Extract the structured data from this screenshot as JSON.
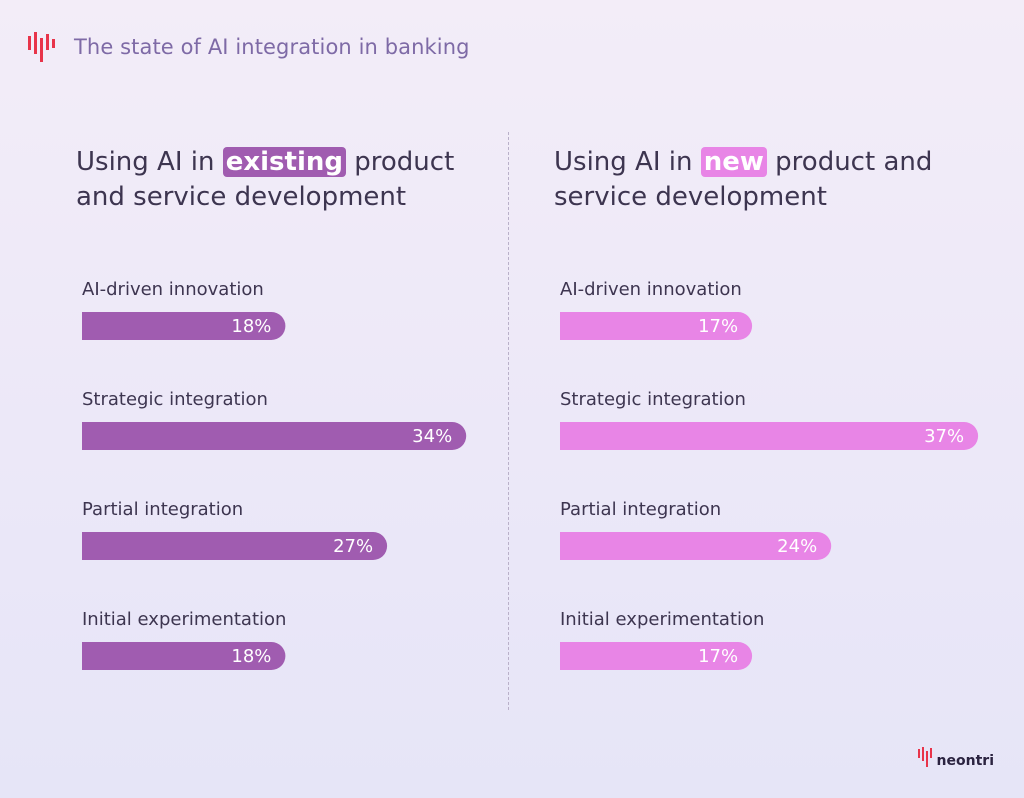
{
  "header": {
    "title": "The state of AI integration in banking"
  },
  "panels": [
    {
      "title_before": "Using AI in",
      "highlight": "existing",
      "title_after": "product and service development"
    },
    {
      "title_before": "Using AI in",
      "highlight": "new",
      "title_after": "product and service development"
    }
  ],
  "brand": {
    "name": "neontri"
  },
  "colors": {
    "existing": "#a05cb0",
    "new": "#e885e6",
    "logo_red": "#e8344a"
  },
  "chart_data": [
    {
      "type": "bar",
      "orientation": "horizontal",
      "categories": [
        "AI-driven innovation",
        "Strategic integration",
        "Partial integration",
        "Initial experimentation"
      ],
      "values": [
        18,
        34,
        27,
        18
      ],
      "value_labels": [
        "18%",
        "34%",
        "27%",
        "18%"
      ],
      "unit": "%",
      "color": "#a05cb0"
    },
    {
      "type": "bar",
      "orientation": "horizontal",
      "categories": [
        "AI-driven innovation",
        "Strategic integration",
        "Partial integration",
        "Initial experimentation"
      ],
      "values": [
        17,
        37,
        24,
        17
      ],
      "value_labels": [
        "17%",
        "37%",
        "24%",
        "17%"
      ],
      "unit": "%",
      "color": "#e885e6"
    }
  ]
}
